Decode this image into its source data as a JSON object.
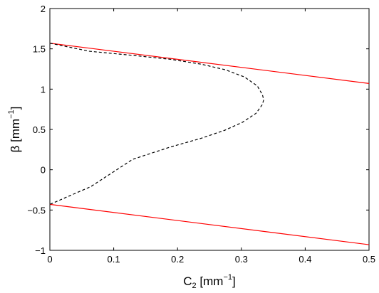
{
  "chart_data": {
    "type": "line",
    "title": "",
    "xlabel": {
      "base": "C",
      "sub": "2",
      "unit_prefix": " [mm",
      "sup": "−1",
      "unit_suffix": "]"
    },
    "ylabel": {
      "base": "β [mm",
      "sup": "−1",
      "suffix": "]"
    },
    "xlim": [
      0,
      0.5
    ],
    "ylim": [
      -1,
      2
    ],
    "x_ticks": [
      "0",
      "0.1",
      "0.2",
      "0.3",
      "0.4",
      "0.5"
    ],
    "y_ticks": [
      "−1",
      "−0.5",
      "0",
      "0.5",
      "1",
      "1.5",
      "2"
    ],
    "grid": false,
    "series": [
      {
        "style": "solid",
        "color": "#ff0000",
        "x": [
          0,
          0.5
        ],
        "y": [
          1.57,
          1.07
        ]
      },
      {
        "style": "solid",
        "color": "#ff0000",
        "x": [
          0,
          0.5
        ],
        "y": [
          -0.43,
          -0.93
        ]
      },
      {
        "style": "dashed",
        "color": "#000000",
        "x": [
          0,
          0.031,
          0.062,
          0.131,
          0.189,
          0.237,
          0.275,
          0.305,
          0.325,
          0.333,
          0.335,
          0.333,
          0.323,
          0.302,
          0.274,
          0.237,
          0.188,
          0.13,
          0.064,
          0
        ],
        "y": [
          1.57,
          1.52,
          1.47,
          1.418,
          1.37,
          1.31,
          1.24,
          1.15,
          1.04,
          0.93,
          0.87,
          0.81,
          0.7,
          0.59,
          0.49,
          0.39,
          0.28,
          0.13,
          -0.21,
          -0.43
        ]
      }
    ]
  }
}
